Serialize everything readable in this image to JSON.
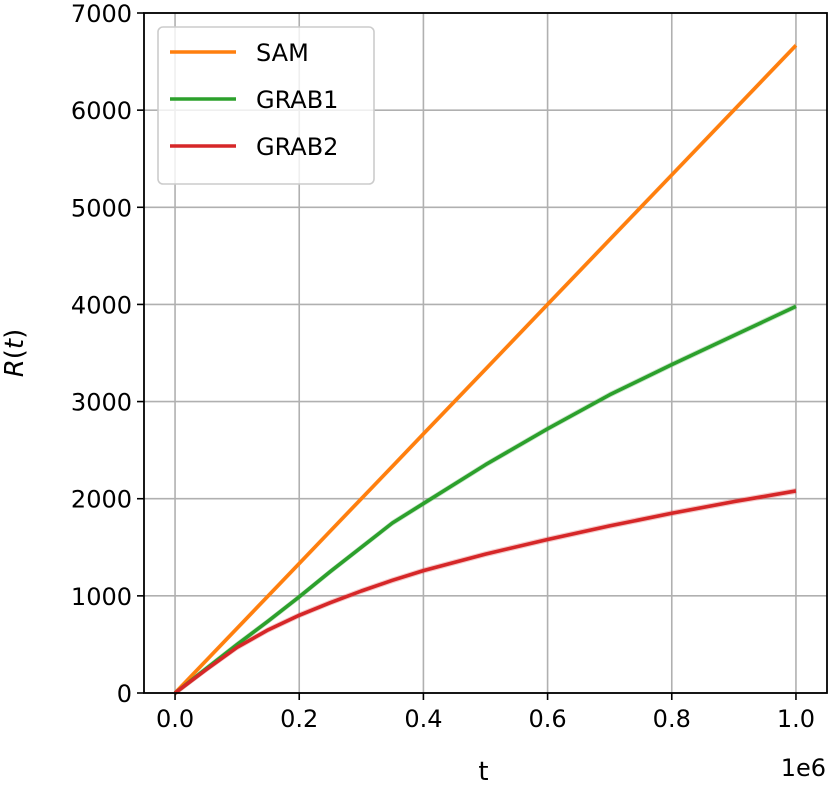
{
  "chart_data": {
    "type": "line",
    "title": "",
    "xlabel": "t",
    "ylabel": "R(t)",
    "x_offset_label": "1e6",
    "xlim": [
      -0.05,
      1.05
    ],
    "ylim": [
      0,
      7000
    ],
    "grid": true,
    "legend_position": "top-left",
    "x_ticks": [
      0.0,
      0.2,
      0.4,
      0.6,
      0.8,
      1.0
    ],
    "x_tick_labels": [
      "0.0",
      "0.2",
      "0.4",
      "0.6",
      "0.8",
      "1.0"
    ],
    "y_ticks": [
      0,
      1000,
      2000,
      3000,
      4000,
      5000,
      6000,
      7000
    ],
    "y_tick_labels": [
      "0",
      "1000",
      "2000",
      "3000",
      "4000",
      "5000",
      "6000",
      "7000"
    ],
    "x": [
      0.0,
      0.05,
      0.1,
      0.15,
      0.2,
      0.25,
      0.3,
      0.35,
      0.4,
      0.5,
      0.6,
      0.7,
      0.8,
      0.9,
      1.0
    ],
    "series": [
      {
        "name": "SAM",
        "color": "#ff7f0e",
        "values": [
          0,
          333,
          667,
          1000,
          1333,
          1667,
          2000,
          2333,
          2667,
          3333,
          4000,
          4667,
          5333,
          6000,
          6667
        ]
      },
      {
        "name": "GRAB1",
        "color": "#2ca02c",
        "values": [
          0,
          250,
          500,
          740,
          990,
          1250,
          1500,
          1750,
          1950,
          2350,
          2720,
          3070,
          3380,
          3680,
          3980
        ]
      },
      {
        "name": "GRAB2",
        "color": "#d62728",
        "values": [
          0,
          240,
          470,
          650,
          800,
          930,
          1050,
          1160,
          1260,
          1430,
          1580,
          1720,
          1850,
          1970,
          2080
        ]
      }
    ]
  }
}
